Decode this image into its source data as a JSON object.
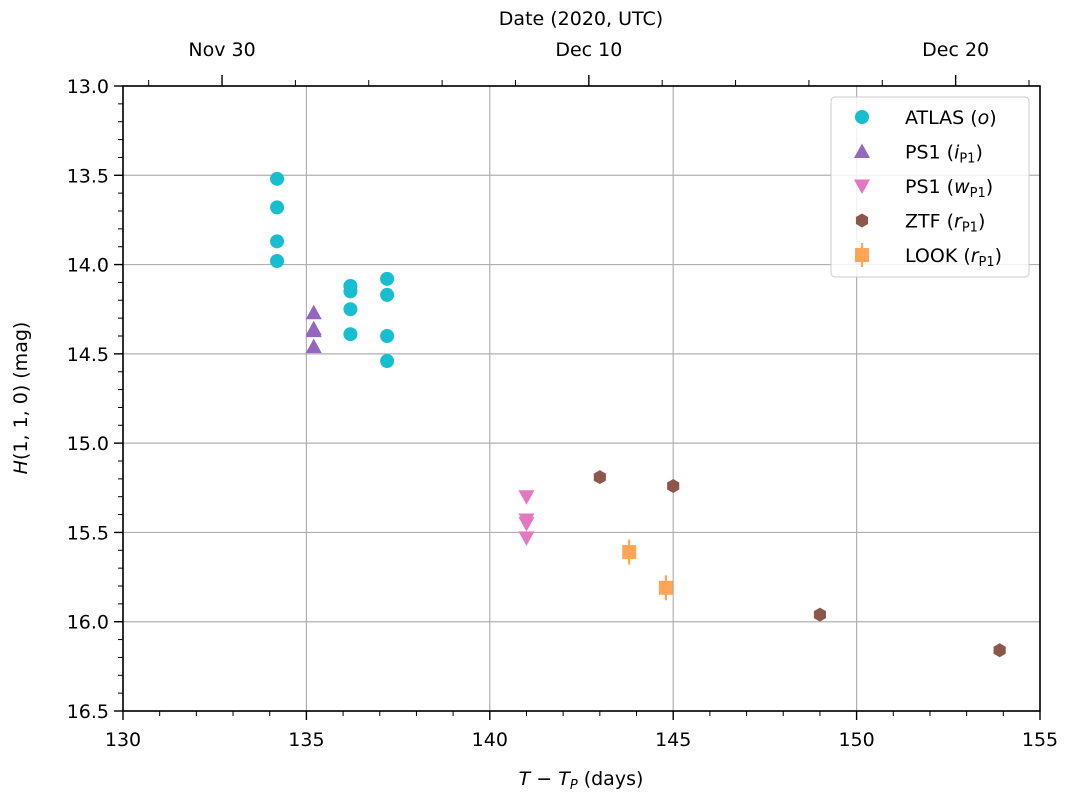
{
  "chart_data": {
    "type": "scatter",
    "title": "",
    "xlabel": "T − T_P (days)",
    "ylabel": "H(1, 1, 0) (mag)",
    "top_xlabel": "Date (2020, UTC)",
    "xlim": [
      130,
      155
    ],
    "ylim": [
      16.5,
      13.0
    ],
    "y_inverted": true,
    "grid": true,
    "legend_position": "top-right",
    "x_ticks": [
      "130",
      "135",
      "140",
      "145",
      "150",
      "155"
    ],
    "y_ticks": [
      "13.0",
      "13.5",
      "14.0",
      "14.5",
      "15.0",
      "15.5",
      "16.0",
      "16.5"
    ],
    "top_ticks": [
      {
        "label": "Nov 30",
        "x": 132.7
      },
      {
        "label": "Dec 10",
        "x": 142.7
      },
      {
        "label": "Dec 20",
        "x": 152.7
      }
    ],
    "series": [
      {
        "name": "ATLAS",
        "filter": "o",
        "marker": "circle",
        "color": "#17becf",
        "points": [
          {
            "x": 134.2,
            "y": 13.52
          },
          {
            "x": 134.2,
            "y": 13.68
          },
          {
            "x": 134.2,
            "y": 13.87
          },
          {
            "x": 134.2,
            "y": 13.98
          },
          {
            "x": 136.2,
            "y": 14.12
          },
          {
            "x": 136.2,
            "y": 14.15
          },
          {
            "x": 136.2,
            "y": 14.25
          },
          {
            "x": 136.2,
            "y": 14.39
          },
          {
            "x": 137.2,
            "y": 14.08
          },
          {
            "x": 137.2,
            "y": 14.17
          },
          {
            "x": 137.2,
            "y": 14.4
          },
          {
            "x": 137.2,
            "y": 14.54
          }
        ]
      },
      {
        "name": "PS1",
        "filter": "i",
        "filter_sub": "P1",
        "marker": "triangle-up",
        "color": "#9467bd",
        "points": [
          {
            "x": 135.2,
            "y": 14.27
          },
          {
            "x": 135.2,
            "y": 14.36
          },
          {
            "x": 135.2,
            "y": 14.37
          },
          {
            "x": 135.2,
            "y": 14.46
          }
        ]
      },
      {
        "name": "PS1",
        "filter": "w",
        "filter_sub": "P1",
        "marker": "triangle-down",
        "color": "#e377c2",
        "points": [
          {
            "x": 141.0,
            "y": 15.3
          },
          {
            "x": 141.0,
            "y": 15.43
          },
          {
            "x": 141.0,
            "y": 15.45
          },
          {
            "x": 141.0,
            "y": 15.53
          }
        ]
      },
      {
        "name": "ZTF",
        "filter": "r",
        "filter_sub": "P1",
        "marker": "hexagon",
        "color": "#8c564b",
        "points": [
          {
            "x": 143.0,
            "y": 15.19
          },
          {
            "x": 145.0,
            "y": 15.24
          },
          {
            "x": 149.0,
            "y": 15.96
          },
          {
            "x": 153.9,
            "y": 16.16
          }
        ]
      },
      {
        "name": "LOOK",
        "filter": "r",
        "filter_sub": "P1",
        "marker": "square",
        "color": "#ff7f0e",
        "points": [
          {
            "x": 143.8,
            "y": 15.61,
            "err": 0.07
          },
          {
            "x": 144.8,
            "y": 15.81,
            "err": 0.07
          }
        ]
      }
    ]
  }
}
